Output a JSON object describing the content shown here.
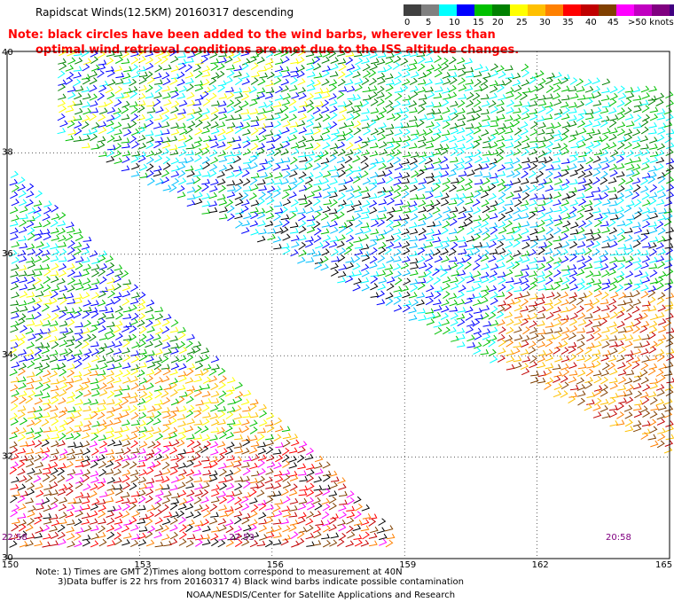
{
  "header": {
    "title": "Rapidscat Winds(12.5KM) 20160317 descending",
    "note_line1": "Note: black circles have been added to the wind barbs, wherever less than",
    "note_line2": "optimal wind retrieval conditions are met due to the ISS altitude changes."
  },
  "legend": {
    "colors": [
      "#404040",
      "#808080",
      "#00ffff",
      "#0000ff",
      "#00c000",
      "#008000",
      "#ffff00",
      "#ffc000",
      "#ff8000",
      "#ff0000",
      "#c00000",
      "#804000",
      "#ff00ff",
      "#c000c0",
      "#800080",
      "#400080"
    ],
    "labels": [
      "0",
      "5",
      "10",
      "15",
      "20",
      "25",
      "30",
      "35",
      "40",
      "45",
      ">50 knots"
    ]
  },
  "map": {
    "lat_labels": [
      "40",
      "38",
      "36",
      "34",
      "32",
      "30"
    ],
    "lon_labels": [
      "150",
      "153",
      "156",
      "159",
      "162",
      "165"
    ],
    "time_labels": [
      "22:58",
      "22:53",
      "20:58"
    ]
  },
  "footer": {
    "line1": "Note: 1) Times are GMT 2)Times along bottom correspond to measurement at 40N",
    "line2": "3)Data buffer is 22 hrs from 20160317 4) Black wind barbs indicate possible contamination",
    "line3": "NOAA/NESDIS/Center for Satellite Applications and Research"
  }
}
